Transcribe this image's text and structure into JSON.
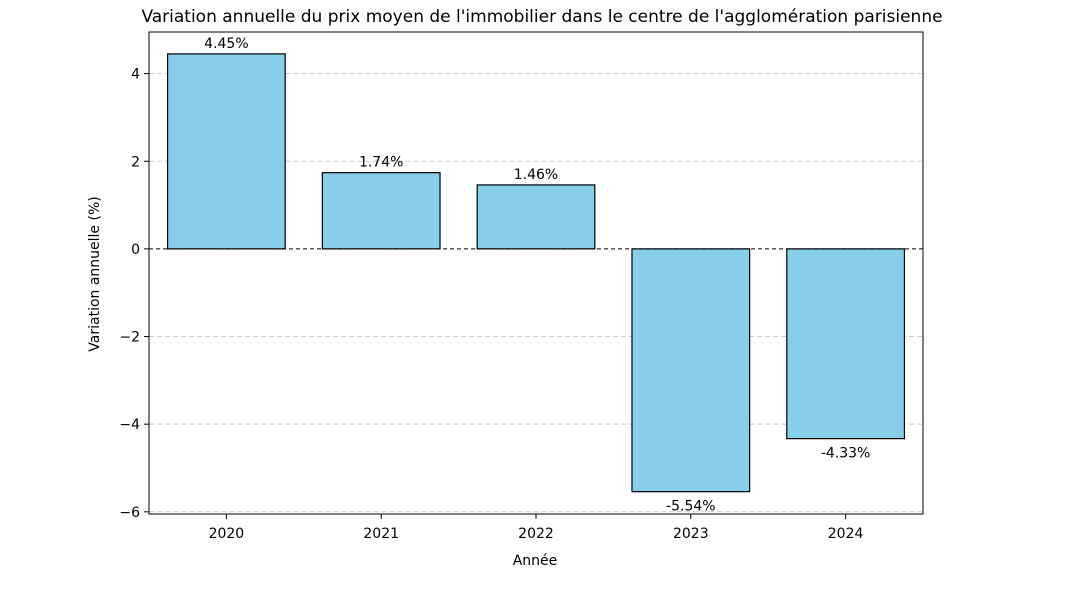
{
  "chart_data": {
    "type": "bar",
    "title": "Variation annuelle du prix moyen de l'immobilier dans le centre de l'agglomération parisienne",
    "xlabel": "Année",
    "ylabel": "Variation annuelle (%)",
    "categories": [
      "2020",
      "2021",
      "2022",
      "2023",
      "2024"
    ],
    "values": [
      4.45,
      1.74,
      1.46,
      -5.54,
      -4.33
    ],
    "value_labels": [
      "4.45%",
      "1.74%",
      "1.46%",
      "-5.54%",
      "-4.33%"
    ],
    "ylim": [
      -6.05,
      4.95
    ],
    "yticks": [
      -6,
      -4,
      -2,
      0,
      2,
      4
    ],
    "ytick_labels": [
      "−6",
      "−4",
      "−2",
      "0",
      "2",
      "4"
    ],
    "grid": "y, dashed",
    "zero_line": "dashed",
    "colors": {
      "bar_fill": "#87ceeb",
      "bar_edge": "#000000",
      "grid": "#c8c8c8"
    }
  }
}
